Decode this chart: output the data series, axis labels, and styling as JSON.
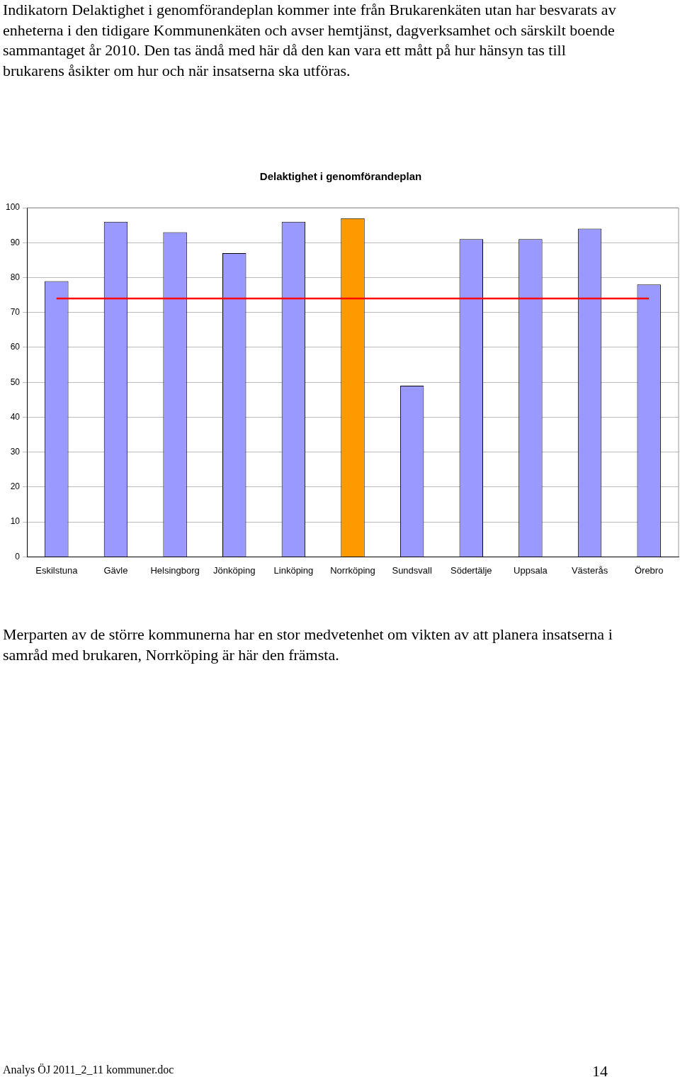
{
  "chart_data": {
    "type": "bar",
    "title": "Delaktighet i genomförandeplan",
    "categories": [
      "Eskilstuna",
      "Gävle",
      "Helsingborg",
      "Jönköping",
      "Linköping",
      "Norrköping",
      "Sundsvall",
      "Södertälje",
      "Uppsala",
      "Västerås",
      "Örebro"
    ],
    "values": [
      79,
      96,
      93,
      87,
      96,
      97,
      49,
      91,
      91,
      94,
      78
    ],
    "colors": [
      "#9999ff",
      "#9999ff",
      "#9999ff",
      "#9999ff",
      "#9999ff",
      "#ff9900",
      "#9999ff",
      "#9999ff",
      "#9999ff",
      "#9999ff",
      "#9999ff"
    ],
    "ylim": [
      0,
      100
    ],
    "yticks": [
      0,
      10,
      20,
      30,
      40,
      50,
      60,
      70,
      80,
      90,
      100
    ],
    "grid": "y",
    "legend": false,
    "ref_lines": [
      {
        "axis": "y",
        "value": 74,
        "color": "#ff0000"
      }
    ],
    "annotations": [
      "Indikatorn Delaktighet i genomförandeplan kommer inte från Brukarenkäten utan har besvarats av enheterna i den tidigare Kommunenkäten och avser hemtjänst, dagverksamhet och särskilt boende sammantaget år 2010. Den tas ändå med här då den kan vara ett mått på hur hänsyn tas till brukarens åsikter om hur och när insatserna ska utföras.",
      "Merparten av de större kommunerna har en stor medvetenhet om vikten av att planera insatserna i samråd med brukaren, Norrköping är här den främsta.",
      "Analys ÖJ 2011_2_11 kommuner.doc",
      "14"
    ]
  }
}
